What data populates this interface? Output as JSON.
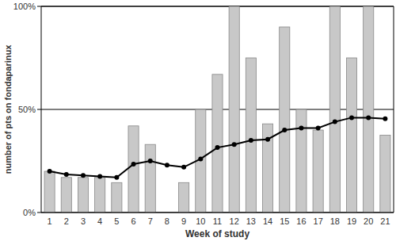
{
  "chart_data": {
    "type": "bar",
    "x_label": "Week of study",
    "y_label": "number of pts on fondaparinux",
    "categories": [
      "1",
      "2",
      "3",
      "4",
      "5",
      "6",
      "7",
      "8",
      "9",
      "10",
      "11",
      "12",
      "13",
      "14",
      "15",
      "16",
      "17",
      "18",
      "19",
      "20",
      "21"
    ],
    "series": [
      {
        "type": "bar",
        "color": "#c8c8c8",
        "values": [
          20,
          17,
          17,
          17,
          14.5,
          42,
          33,
          0,
          14.5,
          50,
          67,
          100,
          75,
          43,
          90,
          50,
          40,
          100,
          75,
          100,
          37.5
        ]
      },
      {
        "type": "line",
        "color": "#000000",
        "marker": "circle",
        "values": [
          20,
          18.5,
          18,
          17.5,
          17,
          23.5,
          25,
          23,
          22,
          26,
          31.5,
          33,
          35,
          35.5,
          40,
          41,
          41,
          44,
          46,
          46,
          45.5
        ]
      }
    ],
    "ylim": [
      0,
      100
    ],
    "yticks": [
      {
        "value": 0,
        "label": "0%"
      },
      {
        "value": 50,
        "label": "50%"
      },
      {
        "value": 100,
        "label": "100%"
      }
    ],
    "grid": true
  }
}
